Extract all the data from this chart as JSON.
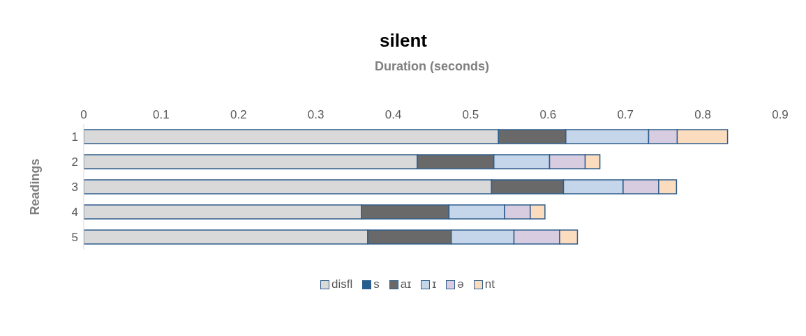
{
  "chart_data": {
    "type": "bar",
    "orientation": "horizontal",
    "stacked": true,
    "title": "silent",
    "xlabel": "Duration (seconds)",
    "ylabel": "Readings",
    "categories": [
      "1",
      "2",
      "3",
      "4",
      "5"
    ],
    "series": [
      {
        "name": "disfl",
        "color": "#d9d9d9",
        "values": [
          0.536,
          0.431,
          0.527,
          0.359,
          0.367
        ]
      },
      {
        "name": "s",
        "color": "#255e91",
        "values": [
          0,
          0,
          0,
          0,
          0
        ]
      },
      {
        "name": "aɪ",
        "color": "#696969",
        "values": [
          0.087,
          0.099,
          0.093,
          0.113,
          0.108
        ]
      },
      {
        "name": "ɪ",
        "color": "#c5d6eb",
        "values": [
          0.107,
          0.072,
          0.077,
          0.072,
          0.081
        ]
      },
      {
        "name": "ə",
        "color": "#d8cde0",
        "values": [
          0.037,
          0.046,
          0.046,
          0.033,
          0.059
        ]
      },
      {
        "name": "nt",
        "color": "#fcdcbf",
        "values": [
          0.065,
          0.019,
          0.023,
          0.019,
          0.023
        ]
      }
    ],
    "xlim": [
      0,
      0.9
    ],
    "xticks": [
      0,
      0.1,
      0.2,
      0.3,
      0.4,
      0.5,
      0.6,
      0.7,
      0.8,
      0.9
    ],
    "grid": false,
    "legend": "bottom"
  }
}
